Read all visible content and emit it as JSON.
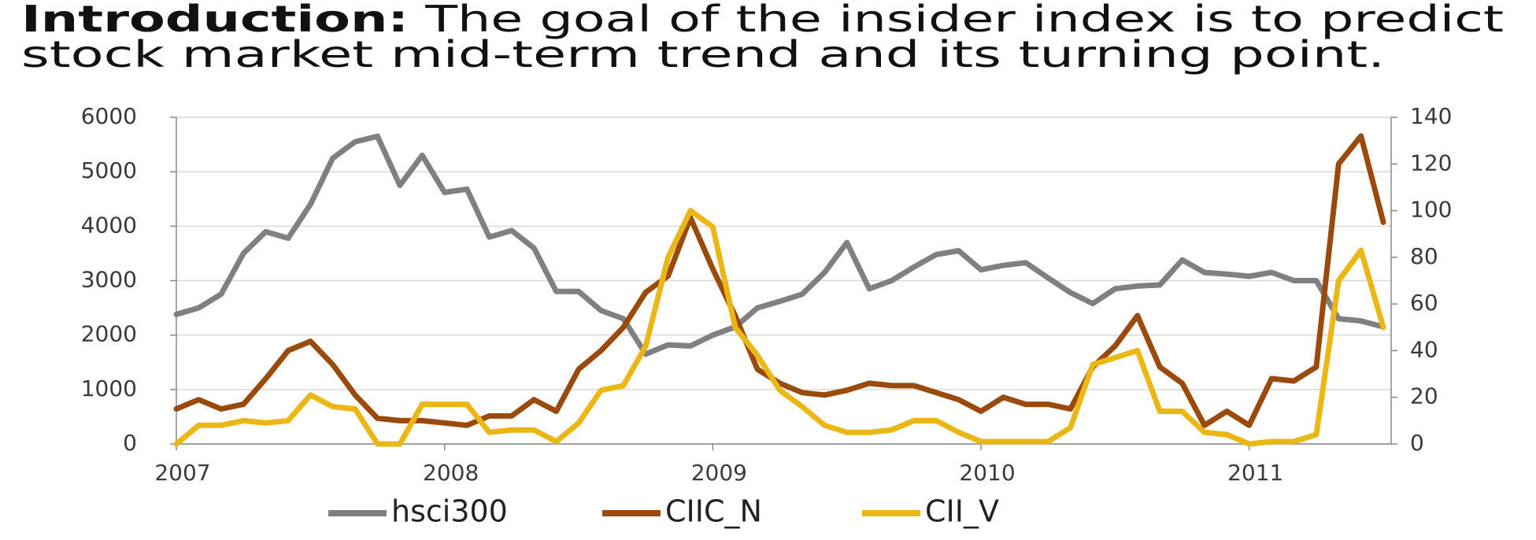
{
  "intro": {
    "label": "Introduction:",
    "lines": [
      "The goal of the insider index is to predict",
      "stock market mid-term trend and its turning point."
    ]
  },
  "chart_data": {
    "type": "line",
    "categories": [
      "2007",
      null,
      null,
      null,
      null,
      null,
      null,
      null,
      null,
      null,
      null,
      null,
      "2008",
      null,
      null,
      null,
      null,
      null,
      null,
      null,
      null,
      null,
      null,
      null,
      "2009",
      null,
      null,
      null,
      null,
      null,
      null,
      null,
      null,
      null,
      null,
      null,
      "2010",
      null,
      null,
      null,
      null,
      null,
      null,
      null,
      null,
      null,
      null,
      null,
      "2011",
      null,
      null,
      null,
      null,
      null,
      null
    ],
    "series": [
      {
        "name": "hsci300",
        "color": "#808080",
        "axis": "y",
        "values": [
          2380,
          2500,
          2750,
          3500,
          3900,
          3780,
          4400,
          5250,
          5550,
          5650,
          4750,
          5300,
          4620,
          4680,
          3800,
          3920,
          3600,
          2800,
          2800,
          2450,
          2300,
          1650,
          1820,
          1800,
          2000,
          2150,
          2500,
          2620,
          2750,
          3150,
          3700,
          2850,
          3000,
          3250,
          3480,
          3550,
          3200,
          3280,
          3330,
          3050,
          2780,
          2580,
          2850,
          2900,
          2920,
          3380,
          3150,
          3120,
          3080,
          3150,
          3000,
          3000,
          2300,
          2260,
          2150
        ]
      },
      {
        "name": "CIIC_N",
        "color": "#9a4a0c",
        "axis": "y2",
        "values": [
          15,
          19,
          15,
          17,
          28,
          40,
          44,
          34,
          21,
          11,
          10,
          10,
          9,
          8,
          12,
          12,
          19,
          14,
          32,
          40,
          50,
          65,
          72,
          97,
          75,
          55,
          32,
          26,
          22,
          21,
          23,
          26,
          25,
          25,
          22,
          19,
          14,
          20,
          17,
          17,
          15,
          33,
          42,
          55,
          33,
          26,
          8,
          14,
          8,
          28,
          27,
          33,
          120,
          132,
          95
        ]
      },
      {
        "name": "CII_V",
        "color": "#eab714",
        "axis": "y2",
        "values": [
          0,
          8,
          8,
          10,
          9,
          10,
          21,
          16,
          15,
          0,
          0,
          17,
          17,
          17,
          5,
          6,
          6,
          1,
          9,
          23,
          25,
          42,
          80,
          100,
          93,
          50,
          38,
          23,
          16,
          8,
          5,
          5,
          6,
          10,
          10,
          5,
          1,
          1,
          1,
          1,
          7,
          34,
          37,
          40,
          14,
          14,
          5,
          4,
          0,
          1,
          1,
          4,
          70,
          83,
          50
        ]
      }
    ],
    "ylim": [
      0,
      6000
    ],
    "yticks": [
      0,
      1000,
      2000,
      3000,
      4000,
      5000,
      6000
    ],
    "y2lim": [
      0,
      140
    ],
    "y2ticks": [
      0,
      20,
      40,
      60,
      80,
      100,
      120,
      140
    ],
    "grid": true,
    "legend": "bottom"
  }
}
